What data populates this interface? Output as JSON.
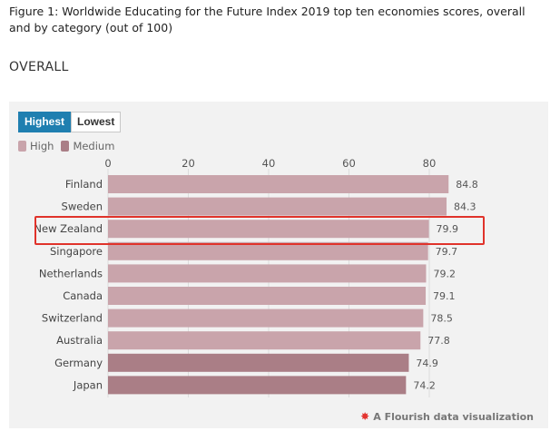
{
  "caption": "Figure 1: Worldwide Educating for the Future Index 2019 top ten economies scores, overall and by category (out of 100)",
  "section_title": "OVERALL",
  "toggle": {
    "highest_label": "Highest",
    "lowest_label": "Lowest",
    "active": "highest"
  },
  "legend": [
    {
      "label": "High",
      "color": "#c9a4ab"
    },
    {
      "label": "Medium",
      "color": "#aa7e86"
    }
  ],
  "credit": {
    "icon": "flourish-star-icon",
    "label": "A Flourish data visualization"
  },
  "chart_data": {
    "type": "bar",
    "orientation": "horizontal",
    "categories": [
      "Finland",
      "Sweden",
      "New Zealand",
      "Singapore",
      "Netherlands",
      "Canada",
      "Switzerland",
      "Australia",
      "Germany",
      "Japan"
    ],
    "values": [
      84.8,
      84.3,
      79.9,
      79.7,
      79.2,
      79.1,
      78.5,
      77.8,
      74.9,
      74.2
    ],
    "groups": [
      "High",
      "High",
      "High",
      "High",
      "High",
      "High",
      "High",
      "High",
      "Medium",
      "Medium"
    ],
    "xlim": [
      0,
      80
    ],
    "xticks": [
      0,
      20,
      40,
      60,
      80
    ],
    "axis_position": "top",
    "grid": true,
    "highlighted_category": "New Zealand",
    "highlight_color": "#e0332b"
  }
}
